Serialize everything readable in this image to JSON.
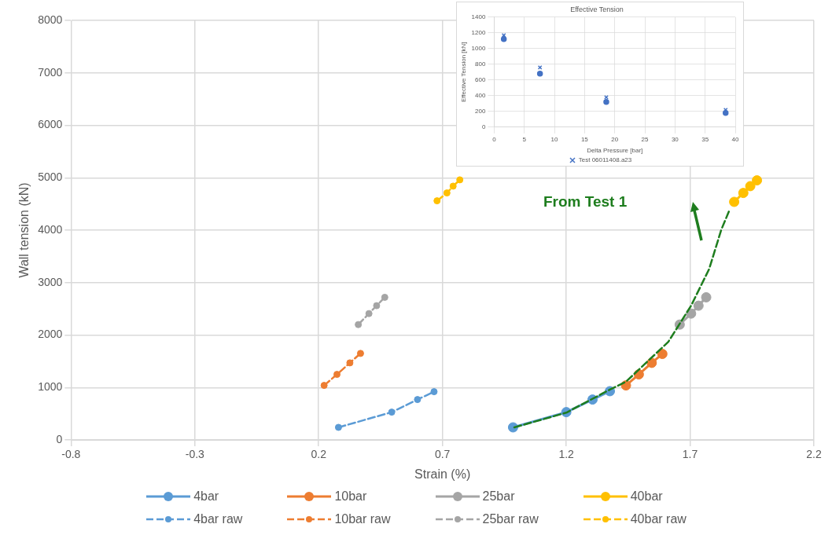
{
  "chart_data": [
    {
      "type": "line",
      "xlabel": "Strain (%)",
      "ylabel": "Wall tension (kN)",
      "xlim": [
        -0.8,
        2.2
      ],
      "xticks": [
        -0.8,
        -0.3,
        0.2,
        0.7,
        1.2,
        1.7,
        2.2
      ],
      "ylim": [
        0,
        8000
      ],
      "yticks": [
        0,
        1000,
        2000,
        3000,
        4000,
        5000,
        6000,
        7000,
        8000
      ],
      "grid": true,
      "legend": "bottom",
      "marker": "circle",
      "annotations": [
        "From Test 1"
      ],
      "series": [
        {
          "name": "4bar",
          "color": "#5b9bd5",
          "line_style": "solid",
          "x": [
            0.985,
            1.2,
            1.306,
            1.376
          ],
          "values": [
            240,
            530,
            770,
            930
          ]
        },
        {
          "name": "10bar",
          "color": "#ed7d31",
          "line_style": "solid",
          "x": [
            1.441,
            1.493,
            1.545,
            1.588
          ],
          "values": [
            1040,
            1250,
            1470,
            1640
          ]
        },
        {
          "name": "25bar",
          "color": "#a5a5a5",
          "line_style": "solid",
          "x": [
            1.658,
            1.704,
            1.734,
            1.765
          ],
          "values": [
            2200,
            2410,
            2560,
            2720
          ]
        },
        {
          "name": "40bar",
          "color": "#ffc000",
          "line_style": "solid",
          "x": [
            1.878,
            1.915,
            1.943,
            1.97
          ],
          "values": [
            4540,
            4710,
            4840,
            4950
          ]
        },
        {
          "name": "4bar raw",
          "color": "#5b9bd5",
          "line_style": "dashed",
          "x": [
            0.28,
            0.495,
            0.599,
            0.666
          ],
          "values": [
            240,
            530,
            770,
            920
          ]
        },
        {
          "name": "10bar raw",
          "color": "#ed7d31",
          "line_style": "dashed",
          "x": [
            0.222,
            0.274,
            0.326,
            0.369
          ],
          "values": [
            1040,
            1250,
            1470,
            1650
          ]
        },
        {
          "name": "25bar raw",
          "color": "#a5a5a5",
          "line_style": "dashed",
          "x": [
            0.36,
            0.403,
            0.434,
            0.467
          ],
          "values": [
            2200,
            2410,
            2560,
            2720
          ]
        },
        {
          "name": "40bar raw",
          "color": "#ffc000",
          "line_style": "dashed",
          "x": [
            0.678,
            0.718,
            0.743,
            0.77
          ],
          "values": [
            4560,
            4710,
            4840,
            4960
          ]
        },
        {
          "type": "line",
          "color": "#1e7d1e",
          "line_style": "dashed",
          "marker": "none",
          "x": [
            0.99,
            1.2,
            1.376,
            1.441,
            1.612,
            1.704,
            1.777,
            1.826,
            1.857
          ],
          "values": [
            240,
            520,
            960,
            1110,
            1870,
            2560,
            3260,
            4010,
            4360
          ]
        }
      ]
    },
    {
      "type": "scatter",
      "title": "Effective Tension",
      "xlabel": "Delta Pressure [bar]",
      "ylabel": "Effective Tension [kN]",
      "xlim": [
        0,
        40
      ],
      "xticks": [
        0,
        5,
        10,
        15,
        20,
        25,
        30,
        35,
        40
      ],
      "ylim": [
        0,
        1400
      ],
      "yticks": [
        0,
        200,
        400,
        600,
        800,
        1000,
        1200,
        1400
      ],
      "grid": true,
      "legend": "bottom",
      "series": [
        {
          "name": "Test 06011408.a23",
          "color": "#4472c4",
          "marker": "cross",
          "x": [
            1.6,
            7.6,
            18.6,
            38.4
          ],
          "values": [
            1170,
            760,
            380,
            220
          ]
        },
        {
          "color": "#4472c4",
          "marker": "circle",
          "x": [
            1.6,
            7.6,
            18.6,
            38.4
          ],
          "values": [
            1120,
            680,
            320,
            180
          ]
        }
      ]
    }
  ]
}
